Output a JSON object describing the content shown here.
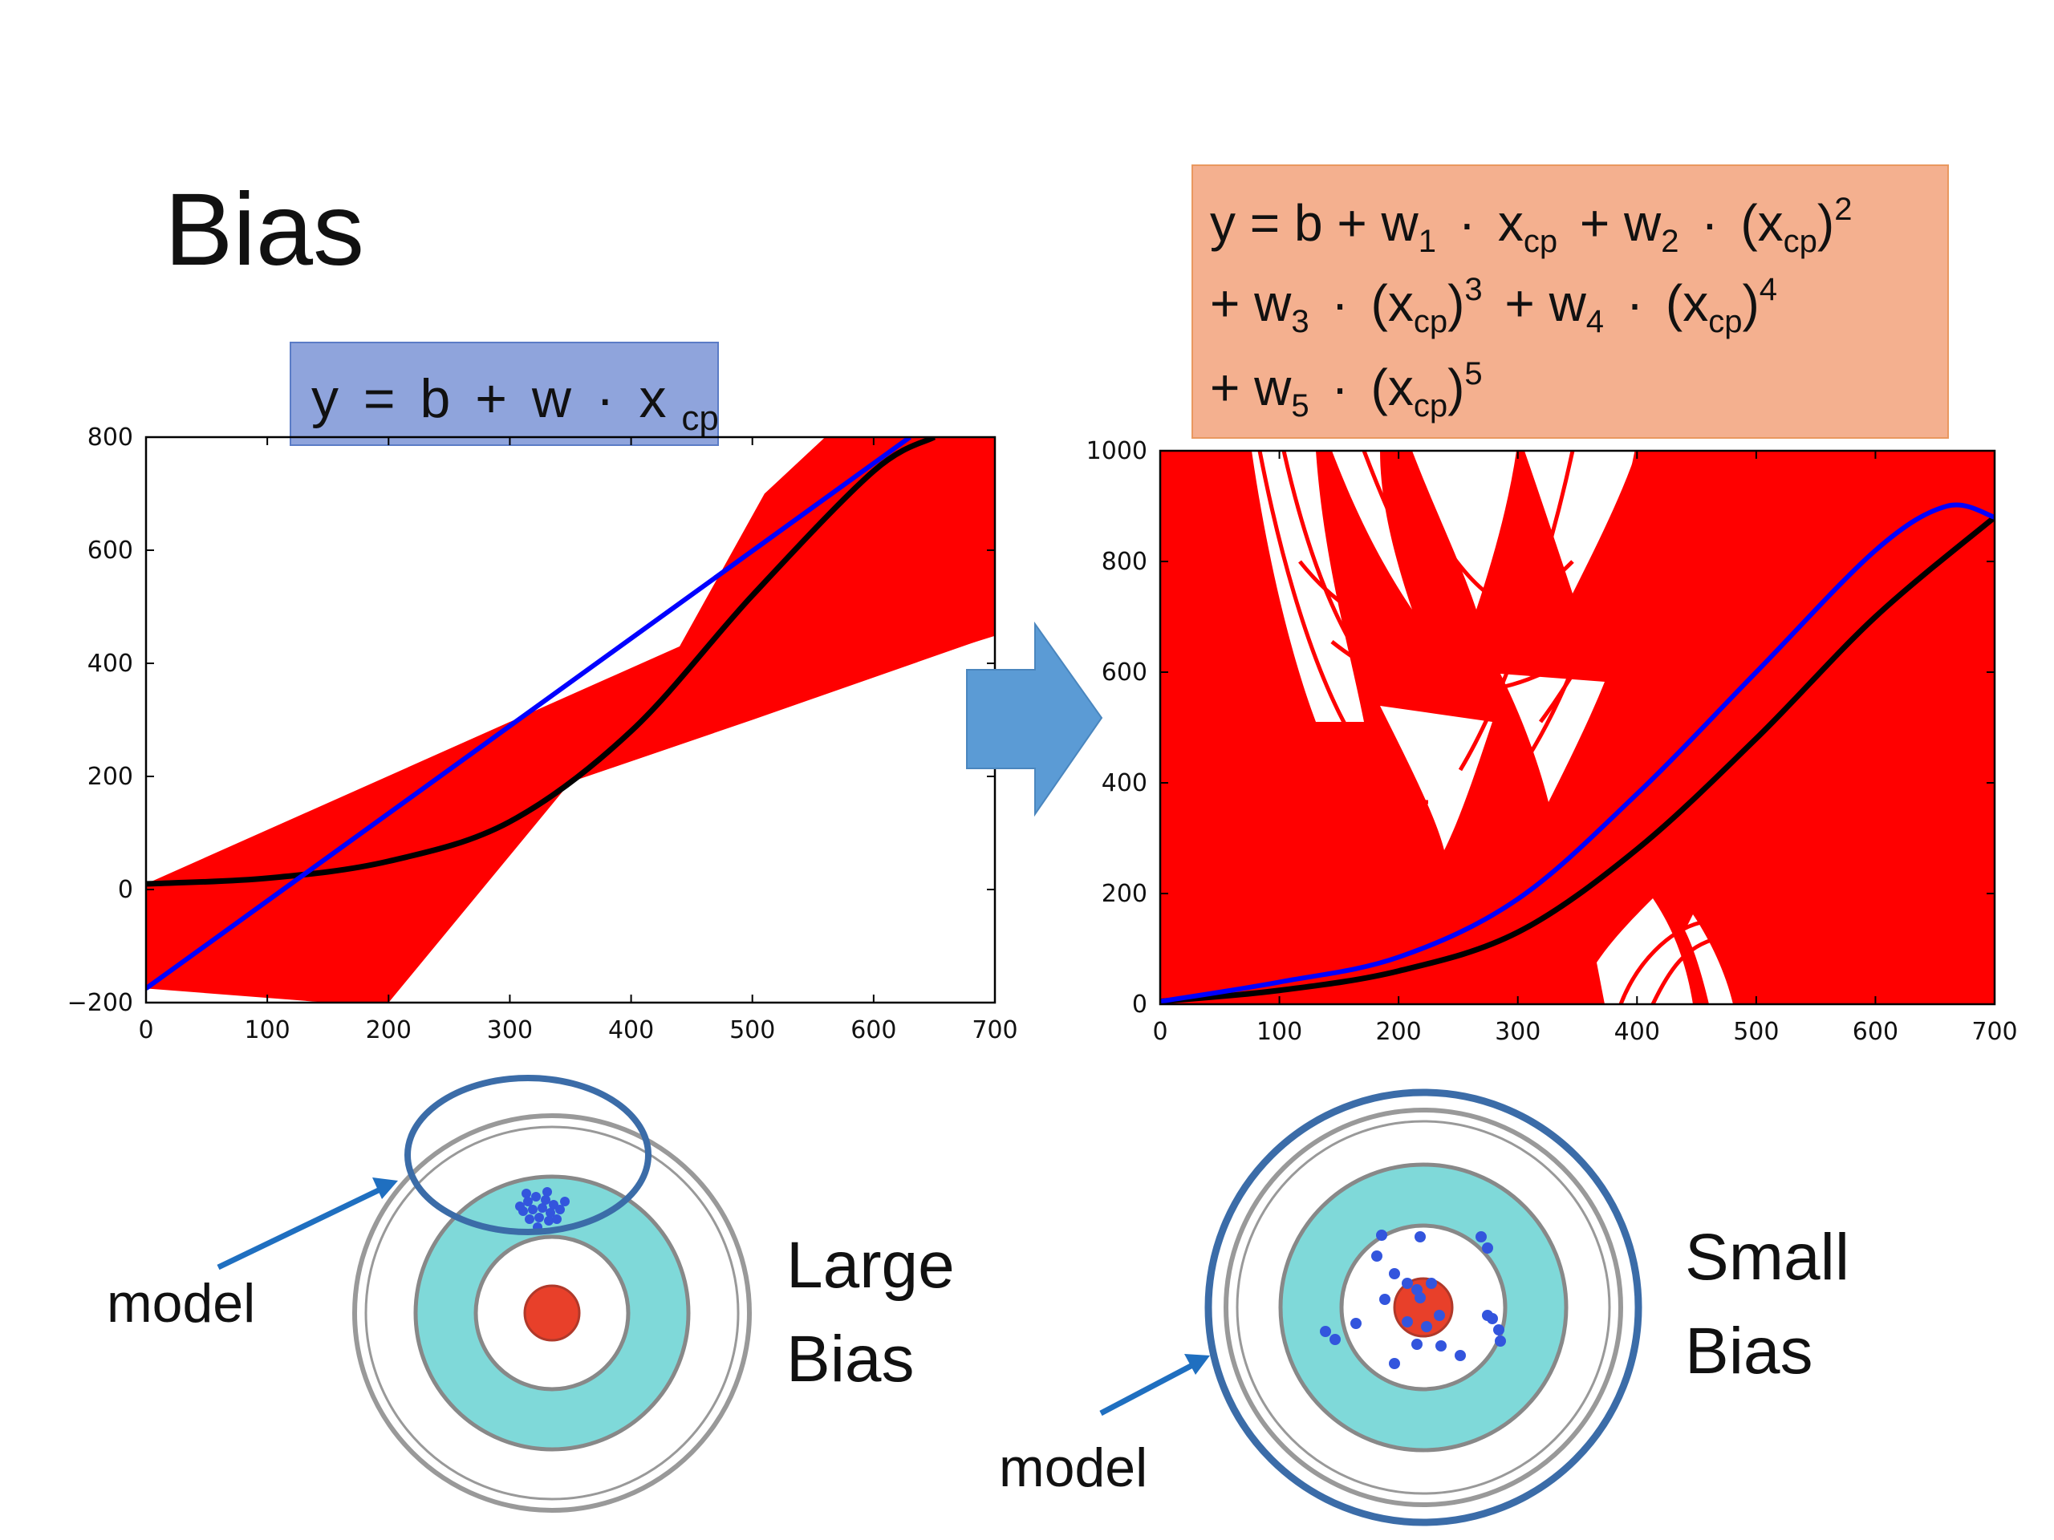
{
  "slide": {
    "title": "Bias"
  },
  "left_formula": {
    "y": "y",
    "eq": "=",
    "b": "b",
    "plus": "+",
    "w": "w",
    "dot": "·",
    "x": "x",
    "cp": "cp"
  },
  "right_formula": {
    "line1_prefix": "y = b + w",
    "sub1": "1",
    "dot": "·",
    "x": "x",
    "cp": "cp",
    "plus_w": "+ w",
    "sub2": "2",
    "paren_x": "(x",
    "close": ")",
    "exp2": "2",
    "sub3": "3",
    "exp3": "3",
    "sub4": "4",
    "exp4": "4",
    "sub5": "5",
    "exp5": "5"
  },
  "colors": {
    "left_formula_bg": "#8FA4DC",
    "right_formula_bg": "#F4B08F",
    "red": "#ff0000",
    "blue": "#0000ff",
    "black": "#000000",
    "arrow": "#5B9BD5",
    "target_ring": "#7fd9d9",
    "bullseye": "#e8402a",
    "dots": "#3355dd",
    "model_circle": "#3B6CA8"
  },
  "chart_data": [
    {
      "type": "line",
      "title": "",
      "xlim": [
        0,
        700
      ],
      "ylim": [
        -200,
        800
      ],
      "x_ticks": [
        "0",
        "100",
        "200",
        "300",
        "400",
        "500",
        "600",
        "700"
      ],
      "y_ticks": [
        "800",
        "600",
        "400",
        "200",
        "0",
        "−200"
      ],
      "series": [
        {
          "color": "blue",
          "x": [
            0,
            630
          ],
          "y": [
            -175,
            800
          ]
        },
        {
          "color": "black",
          "x": [
            0,
            100,
            200,
            300,
            400,
            500,
            600,
            650
          ],
          "y": [
            10,
            20,
            50,
            120,
            280,
            520,
            740,
            800
          ]
        },
        {
          "color": "red",
          "fill_polygon": [
            [
              0,
              -175
            ],
            [
              0,
              10
            ],
            [
              440,
              430
            ],
            [
              510,
              700
            ],
            [
              560,
              800
            ],
            [
              700,
              800
            ],
            [
              700,
              450
            ],
            [
              500,
              300
            ],
            [
              350,
              190
            ],
            [
              200,
              -200
            ],
            [
              150,
              -200
            ]
          ]
        }
      ]
    },
    {
      "type": "line",
      "title": "",
      "xlim": [
        0,
        700
      ],
      "ylim": [
        0,
        1000
      ],
      "x_ticks": [
        "0",
        "100",
        "200",
        "300",
        "400",
        "500",
        "600",
        "700"
      ],
      "y_ticks": [
        "1000",
        "800",
        "600",
        "400",
        "200",
        "0"
      ],
      "series": [
        {
          "color": "blue",
          "x": [
            0,
            100,
            200,
            300,
            400,
            500,
            600,
            660,
            700
          ],
          "y": [
            5,
            40,
            85,
            190,
            380,
            600,
            820,
            900,
            880
          ]
        },
        {
          "color": "black",
          "x": [
            0,
            100,
            200,
            300,
            400,
            500,
            600,
            700
          ],
          "y": [
            5,
            25,
            60,
            130,
            280,
            480,
            700,
            880
          ]
        }
      ]
    }
  ],
  "targets": {
    "left_label_line1": "Large",
    "left_label_line2": "Bias",
    "right_label_line1": "Small",
    "right_label_line2": "Bias",
    "model_label": "model"
  }
}
